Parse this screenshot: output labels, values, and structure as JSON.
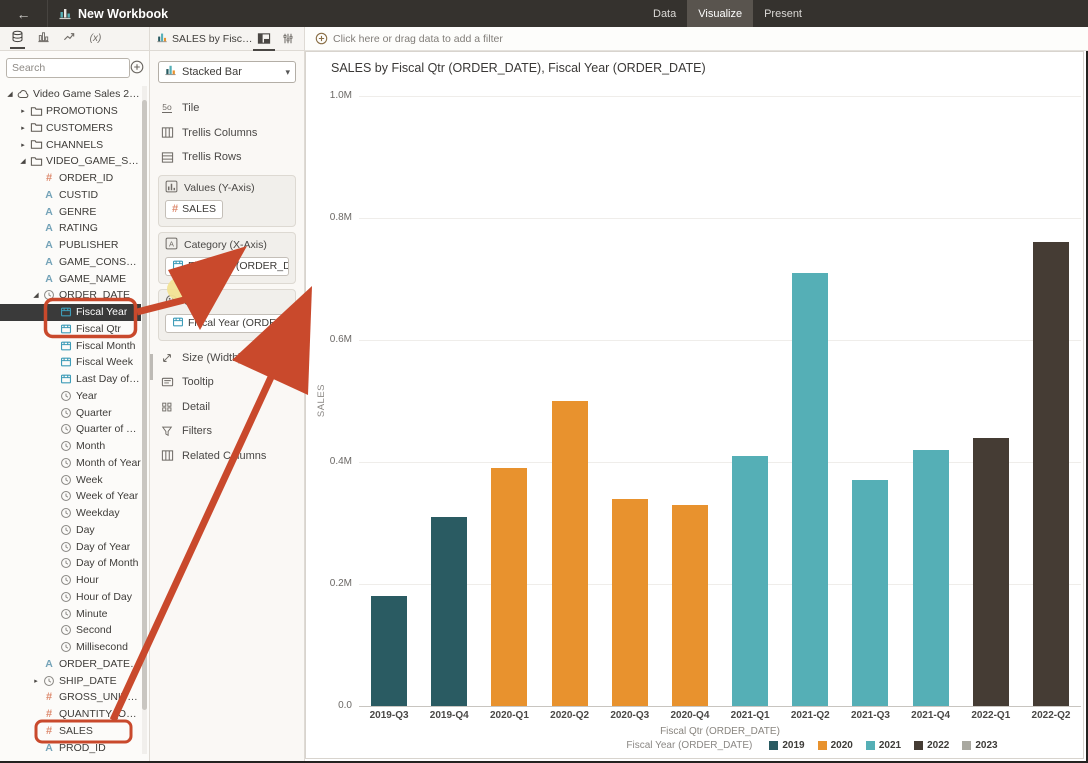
{
  "window": {
    "title": "New Workbook"
  },
  "header": {
    "tabs": [
      {
        "label": "Data",
        "active": false
      },
      {
        "label": "Visualize",
        "active": true
      },
      {
        "label": "Present",
        "active": false
      }
    ]
  },
  "left_panel": {
    "search_placeholder": "Search",
    "tree": [
      {
        "label": "Video Game Sales 2025",
        "icon": "cloud",
        "level": 0,
        "expand": "open"
      },
      {
        "label": "PROMOTIONS",
        "icon": "folder",
        "level": 1,
        "expand": "closed"
      },
      {
        "label": "CUSTOMERS",
        "icon": "folder",
        "level": 1,
        "expand": "closed"
      },
      {
        "label": "CHANNELS",
        "icon": "folder",
        "level": 1,
        "expand": "closed"
      },
      {
        "label": "VIDEO_GAME_SALE...",
        "icon": "folder",
        "level": 1,
        "expand": "open"
      },
      {
        "label": "ORDER_ID",
        "icon": "hash",
        "level": 2
      },
      {
        "label": "CUSTID",
        "icon": "attr",
        "level": 2
      },
      {
        "label": "GENRE",
        "icon": "attr",
        "level": 2
      },
      {
        "label": "RATING",
        "icon": "attr",
        "level": 2
      },
      {
        "label": "PUBLISHER",
        "icon": "attr",
        "level": 2
      },
      {
        "label": "GAME_CONSOLE",
        "icon": "attr",
        "level": 2
      },
      {
        "label": "GAME_NAME",
        "icon": "attr",
        "level": 2
      },
      {
        "label": "ORDER_DATE",
        "icon": "clock",
        "level": 2,
        "expand": "open"
      },
      {
        "label": "Fiscal Year",
        "icon": "cal",
        "level": 3,
        "selected": true
      },
      {
        "label": "Fiscal Qtr",
        "icon": "cal",
        "level": 3
      },
      {
        "label": "Fiscal Month",
        "icon": "cal",
        "level": 3
      },
      {
        "label": "Fiscal Week",
        "icon": "cal",
        "level": 3
      },
      {
        "label": "Last Day of M...",
        "icon": "cal",
        "level": 3
      },
      {
        "label": "Year",
        "icon": "clock",
        "level": 3
      },
      {
        "label": "Quarter",
        "icon": "clock",
        "level": 3
      },
      {
        "label": "Quarter of Ye...",
        "icon": "clock",
        "level": 3
      },
      {
        "label": "Month",
        "icon": "clock",
        "level": 3
      },
      {
        "label": "Month of Year",
        "icon": "clock",
        "level": 3
      },
      {
        "label": "Week",
        "icon": "clock",
        "level": 3
      },
      {
        "label": "Week of Year",
        "icon": "clock",
        "level": 3
      },
      {
        "label": "Weekday",
        "icon": "clock",
        "level": 3
      },
      {
        "label": "Day",
        "icon": "clock",
        "level": 3
      },
      {
        "label": "Day of Year",
        "icon": "clock",
        "level": 3
      },
      {
        "label": "Day of Month",
        "icon": "clock",
        "level": 3
      },
      {
        "label": "Hour",
        "icon": "clock",
        "level": 3
      },
      {
        "label": "Hour of Day",
        "icon": "clock",
        "level": 3
      },
      {
        "label": "Minute",
        "icon": "clock",
        "level": 3
      },
      {
        "label": "Second",
        "icon": "clock",
        "level": 3
      },
      {
        "label": "Millisecond",
        "icon": "clock",
        "level": 3
      },
      {
        "label": "ORDER_DATE_Fi...",
        "icon": "attr",
        "level": 2
      },
      {
        "label": "SHIP_DATE",
        "icon": "clock",
        "level": 2,
        "expand": "closed"
      },
      {
        "label": "GROSS_UNIT_PR...",
        "icon": "hash",
        "level": 2
      },
      {
        "label": "QUANTITY_ORD...",
        "icon": "hash",
        "level": 2
      },
      {
        "label": "SALES",
        "icon": "hash",
        "level": 2
      },
      {
        "label": "PROD_ID",
        "icon": "attr",
        "level": 2
      }
    ]
  },
  "grammar_panel": {
    "tab_label": "SALES by Fiscal Qtr ...",
    "viz_type": "Stacked Bar",
    "rows": [
      {
        "kind": "item",
        "icon": "tile",
        "label": "Tile"
      },
      {
        "kind": "item",
        "icon": "tcols",
        "label": "Trellis Columns"
      },
      {
        "kind": "item",
        "icon": "trows",
        "label": "Trellis Rows"
      },
      {
        "kind": "section",
        "icon": "values",
        "label": "Values (Y-Axis)",
        "chips": [
          {
            "icon": "hash",
            "label": "SALES",
            "fit": true
          }
        ]
      },
      {
        "kind": "section",
        "icon": "category",
        "label": "Category (X-Axis)",
        "chips": [
          {
            "icon": "cal",
            "label": "Fiscal Qtr (ORDER_D...",
            "fit": false
          }
        ]
      },
      {
        "kind": "section",
        "icon": "color",
        "label": "Color",
        "chips": [
          {
            "icon": "cal",
            "label": "Fiscal Year (ORDER_...",
            "fit": false
          }
        ]
      },
      {
        "kind": "item",
        "icon": "size",
        "label": "Size (Width)"
      },
      {
        "kind": "item",
        "icon": "tooltip",
        "label": "Tooltip"
      },
      {
        "kind": "item",
        "icon": "detail",
        "label": "Detail"
      },
      {
        "kind": "item",
        "icon": "filters",
        "label": "Filters"
      },
      {
        "kind": "item",
        "icon": "related",
        "label": "Related Columns"
      }
    ]
  },
  "filter_bar": {
    "text": "Click here or drag data to add a filter"
  },
  "chart_data": {
    "type": "bar",
    "title": "SALES by Fiscal Qtr (ORDER_DATE), Fiscal Year (ORDER_DATE)",
    "xlabel": "Fiscal Qtr (ORDER_DATE)",
    "ylabel": "SALES",
    "unit": "M",
    "ylim": [
      0,
      1.0
    ],
    "categories": [
      "2019-Q3",
      "2019-Q4",
      "2020-Q1",
      "2020-Q2",
      "2020-Q3",
      "2020-Q4",
      "2021-Q1",
      "2021-Q2",
      "2021-Q3",
      "2021-Q4",
      "2022-Q1",
      "2022-Q2"
    ],
    "values_M": [
      0.18,
      0.31,
      0.39,
      0.5,
      0.34,
      0.33,
      0.41,
      0.71,
      0.37,
      0.42,
      0.44,
      0.76
    ],
    "bar_years": [
      "2019",
      "2019",
      "2020",
      "2020",
      "2020",
      "2020",
      "2021",
      "2021",
      "2021",
      "2021",
      "2022",
      "2022"
    ],
    "yticks": [
      {
        "label": "1.0M",
        "value": 1.0
      },
      {
        "label": "0.8M",
        "value": 0.8
      },
      {
        "label": "0.6M",
        "value": 0.6
      },
      {
        "label": "0.4M",
        "value": 0.4
      },
      {
        "label": "0.2M",
        "value": 0.2
      },
      {
        "label": "0.0",
        "value": 0.0
      }
    ],
    "legend_title": "Fiscal Year (ORDER_DATE)",
    "legend_position": "bottom",
    "grid": true,
    "legend": [
      {
        "label": "2019",
        "color": "#2A5B62"
      },
      {
        "label": "2020",
        "color": "#E8922E"
      },
      {
        "label": "2021",
        "color": "#55AFB6"
      },
      {
        "label": "2022",
        "color": "#453C34"
      },
      {
        "label": "2023",
        "color": "#A9A8A0"
      }
    ]
  },
  "annotations": {
    "highlight_color": "#C9492C",
    "drop_highlight_color": "#F2E393"
  }
}
